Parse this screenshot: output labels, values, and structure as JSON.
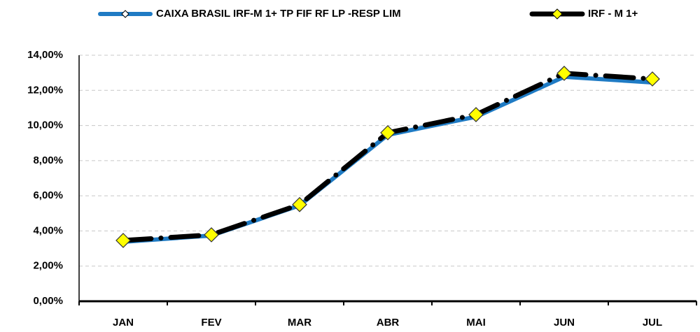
{
  "chart_data": {
    "type": "line",
    "categories": [
      "JAN",
      "FEV",
      "MAR",
      "ABR",
      "MAI",
      "JUN",
      "JUL"
    ],
    "series": [
      {
        "name": "CAIXA BRASIL IRF-M 1+ TP FIF RF LP -RESP LIM",
        "color": "#1f7bc4",
        "values": [
          3.38,
          3.74,
          5.45,
          9.47,
          10.5,
          12.77,
          12.45
        ]
      },
      {
        "name": "IRF - M 1+",
        "color": "#000000",
        "marker_color": "#ffff00",
        "values": [
          3.46,
          3.78,
          5.5,
          9.59,
          10.62,
          12.97,
          12.65
        ]
      }
    ],
    "ylim": [
      0,
      14
    ],
    "yticks": [
      {
        "value": 0,
        "label": "0,00%"
      },
      {
        "value": 2,
        "label": "2,00%"
      },
      {
        "value": 4,
        "label": "4,00%"
      },
      {
        "value": 6,
        "label": "6,00%"
      },
      {
        "value": 8,
        "label": "8,00%"
      },
      {
        "value": 10,
        "label": "10,00%"
      },
      {
        "value": 12,
        "label": "12,00%"
      },
      {
        "value": 14,
        "label": "14,00%"
      }
    ],
    "grid": true,
    "legend": "top"
  }
}
